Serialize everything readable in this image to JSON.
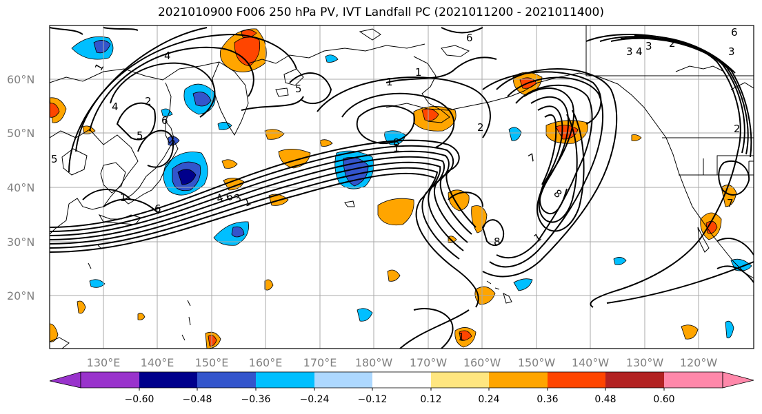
{
  "title": "2021010900 F006 250 hPa PV, IVT Landfall PC (2021011200 - 2021011400)",
  "map": {
    "lat_labels": [
      "60°N",
      "50°N",
      "40°N",
      "30°N",
      "20°N"
    ],
    "lon_labels": [
      "130°E",
      "140°E",
      "150°E",
      "160°E",
      "170°E",
      "180°W",
      "170°W",
      "160°W",
      "150°W",
      "140°W",
      "130°W",
      "120°W"
    ],
    "contour_labels": [
      "1",
      "4",
      "4",
      "5",
      "2",
      "5",
      "6",
      "5",
      "6",
      "8",
      "1",
      "1",
      "4",
      "6",
      "6",
      "3",
      "1",
      "1",
      "1",
      "2",
      "8",
      "1",
      "7",
      "8",
      "1",
      "7",
      "3",
      "4",
      "3",
      "2",
      "3",
      "6",
      "2"
    ],
    "pv_field": "250 hPa PV (black contours)",
    "shading": "IVT Landfall PC"
  },
  "colorbar": {
    "tick_labels": [
      "−0.60",
      "−0.48",
      "−0.36",
      "−0.24",
      "−0.12",
      "0.12",
      "0.24",
      "0.36",
      "0.48",
      "0.60"
    ],
    "colors": [
      "#9933cc",
      "#00008b",
      "#3355cc",
      "#00bfff",
      "#add8ff",
      "#ffffff",
      "#ffe680",
      "#ffa500",
      "#ff4500",
      "#b22222",
      "#ff88aa"
    ]
  }
}
